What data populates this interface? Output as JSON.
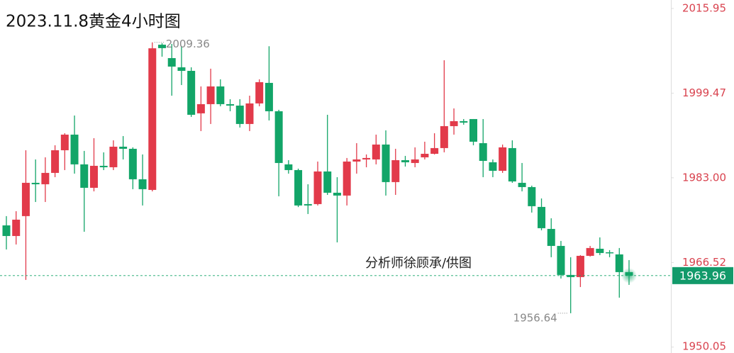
{
  "chart_data": {
    "type": "candlestick",
    "title": "2023.11.8黄金4小时图",
    "watermark": "分析师徐顾承/供图",
    "up_color": "#e23a4a",
    "down_color": "#12a568",
    "series": {
      "open": [
        1973.74,
        1971.67,
        1975.54,
        1982.02,
        1981.74,
        1983.95,
        1988.36,
        1991.4,
        1985.61,
        1981.05,
        1985.33,
        1985.05,
        1989.05,
        1988.64,
        1982.71,
        1980.64,
        2008.9,
        2006.29,
        2004.5,
        2003.81,
        1995.54,
        1997.33,
        2000.78,
        1997.33,
        1997.05,
        1993.47,
        1997.47,
        2001.47,
        1995.95,
        1985.61,
        1984.5,
        1977.88,
        1977.88,
        1984.23,
        1980.09,
        1979.54,
        1986.16,
        1986.57,
        1986.57,
        1989.47,
        1982.16,
        1986.43,
        1985.88,
        1986.98,
        1987.67,
        1988.78,
        1993.05,
        1994.02,
        1994.43,
        1989.74,
        1986.02,
        1984.36,
        1988.78,
        1982.02,
        1981.19,
        1977.33,
        1973.05,
        1969.74,
        1964.09,
        1963.67,
        1967.81,
        1969.19,
        1968.5,
        1968.09,
        1964.64
      ],
      "close": [
        1971.67,
        1974.85,
        1982.02,
        1981.74,
        1983.95,
        1988.36,
        1991.4,
        1985.61,
        1981.05,
        1985.33,
        1985.05,
        1989.05,
        1988.64,
        1982.71,
        1980.78,
        2008.2,
        2008.23,
        2004.64,
        2003.81,
        1995.26,
        1997.33,
        2000.78,
        1997.33,
        1997.05,
        1993.47,
        1997.47,
        2001.61,
        1995.95,
        1985.88,
        1984.5,
        1977.61,
        1977.61,
        1984.23,
        1980.09,
        1979.54,
        1986.16,
        1986.57,
        1986.85,
        1989.47,
        1982.16,
        1986.43,
        1986.02,
        1986.57,
        1987.67,
        1988.78,
        1993.05,
        1994.02,
        1993.74,
        1990.02,
        1986.29,
        1984.36,
        1988.92,
        1982.29,
        1981.19,
        1977.47,
        1973.19,
        1969.74,
        1964.09,
        1963.67,
        1967.81,
        1969.33,
        1968.36,
        1968.36,
        1964.64,
        1963.96
      ],
      "high": [
        1975.54,
        1976.5,
        1988.36,
        1986.57,
        1986.98,
        1989.33,
        1991.67,
        1995.12,
        1988.23,
        1990.71,
        1987.95,
        1990.29,
        1991.12,
        1988.92,
        1987.54,
        2009.36,
        2009.2,
        2009.05,
        2008.64,
        2004.5,
        2000.78,
        2004.23,
        2002.16,
        1998.29,
        1998.29,
        1998.98,
        2002.16,
        2008.6,
        1996.23,
        1986.43,
        1984.78,
        1981.74,
        1986.16,
        1995.26,
        1983.12,
        1986.85,
        1989.74,
        1987.54,
        1991.4,
        1992.23,
        1988.64,
        1987.26,
        1988.92,
        1990.02,
        1991.67,
        2005.88,
        1996.5,
        1994.43,
        1994.43,
        1994.43,
        1986.57,
        1989.47,
        1990.29,
        1985.88,
        1981.47,
        1978.98,
        1975.12,
        1970.71,
        1967.54,
        1967.95,
        1969.74,
        1971.4,
        1968.92,
        1969.33,
        1966.98
      ],
      "low": [
        1969.05,
        1970.02,
        1963.12,
        1978.29,
        1978.29,
        1983.12,
        1984.5,
        1983.81,
        1972.5,
        1980.36,
        1984.5,
        1984.5,
        1986.57,
        1980.78,
        1977.61,
        1980.36,
        2006.57,
        1998.98,
        2001.05,
        1994.85,
        1992.09,
        1993.47,
        1996.92,
        1995.95,
        1992.78,
        1992.09,
        1996.92,
        1994.16,
        1979.4,
        1983.81,
        1977.3,
        1975.95,
        1977.61,
        1979.67,
        1970.43,
        1977.61,
        1983.81,
        1985.05,
        1985.61,
        1979.54,
        1979.67,
        1985.19,
        1985.05,
        1986.57,
        1987.54,
        1987.95,
        1991.4,
        1993.33,
        1989.33,
        1983.12,
        1983.12,
        1983.95,
        1982.02,
        1980.36,
        1976.23,
        1972.78,
        1967.54,
        1963.4,
        1956.64,
        1961.74,
        1967.67,
        1967.95,
        1967.54,
        1959.67,
        1962.16
      ]
    },
    "max_price": 2009.36,
    "min_price": 1956.64,
    "last_price": 1963.96,
    "ylim": [
      1948.9,
      2017.6
    ],
    "yticks": [
      2015.95,
      1999.47,
      {
        "value": 1983,
        "label": "1983.00"
      },
      1966.52,
      1950.05
    ]
  }
}
